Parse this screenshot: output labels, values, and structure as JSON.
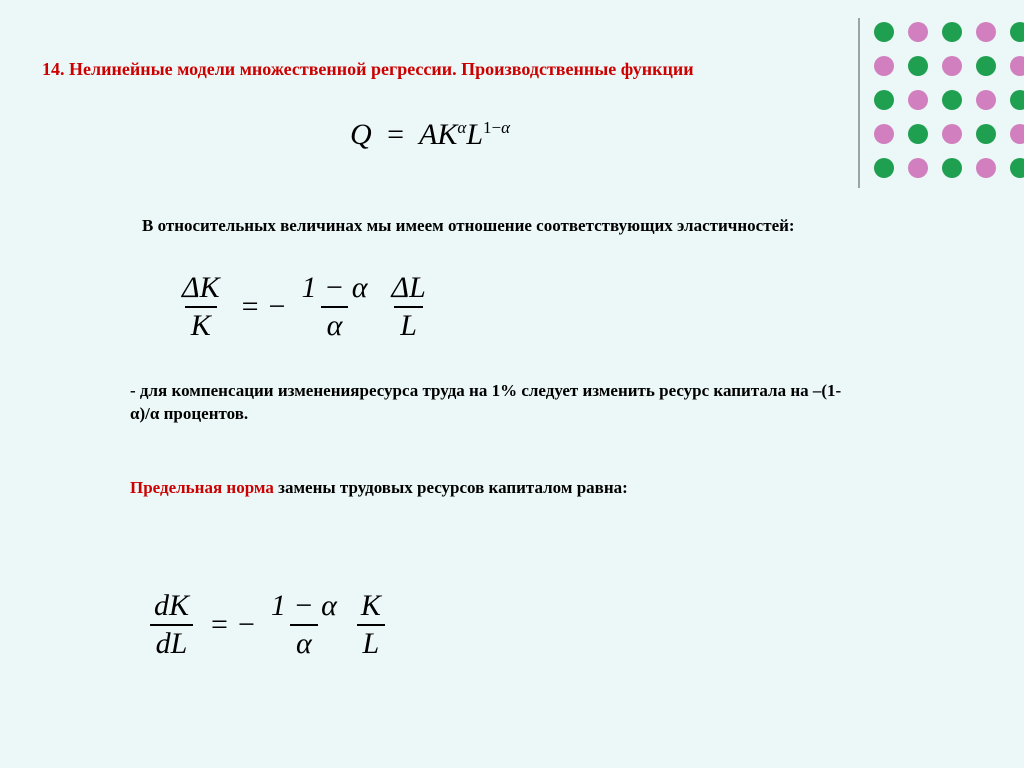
{
  "title": "14. Нелинейные модели множественной регрессии. Производственные функции",
  "equation1": {
    "lhs": "Q",
    "eq": "=",
    "A": "A",
    "K": "K",
    "L": "L",
    "exp1": "α",
    "exp2_prefix": "1−",
    "exp2_alpha": "α"
  },
  "paragraph1": "В относительных величинах мы имеем отношение соответствующих эластичностей:",
  "equation2": {
    "f1_num": "ΔK",
    "f1_den": "K",
    "eq": "=",
    "minus": "−",
    "f2_num": "1 − α",
    "f2_den": "α",
    "f3_num": "ΔL",
    "f3_den": "L"
  },
  "paragraph2": " - для компенсации измененияресурса труда на 1% следует  изменить ресурс капитала на –(1-α)/α процентов.",
  "paragraph3_red": "Предельная норма",
  "paragraph3_rest": " замены трудовых ресурсов капиталом равна:",
  "equation3": {
    "f1_num": "dK",
    "f1_den": "dL",
    "eq": "=",
    "minus": "−",
    "f2_num": "1 − α",
    "f2_den": "α",
    "f3_num": "K",
    "f3_den": "L"
  },
  "decor": {
    "divider_color": "#9aa6a6",
    "dot_rows": [
      [
        "#1fa050",
        "#d27fbf",
        "#1fa050",
        "#d27fbf",
        "#1fa050"
      ],
      [
        "#d27fbf",
        "#1fa050",
        "#d27fbf",
        "#1fa050",
        "#d27fbf"
      ],
      [
        "#1fa050",
        "#d27fbf",
        "#1fa050",
        "#d27fbf",
        "#1fa050"
      ],
      [
        "#d27fbf",
        "#1fa050",
        "#d27fbf",
        "#1fa050",
        "#d27fbf"
      ],
      [
        "#1fa050",
        "#d27fbf",
        "#1fa050",
        "#d27fbf",
        "#1fa050"
      ]
    ]
  },
  "colors": {
    "background": "#ecf8f8",
    "title": "#cc0000",
    "text": "#000000"
  }
}
